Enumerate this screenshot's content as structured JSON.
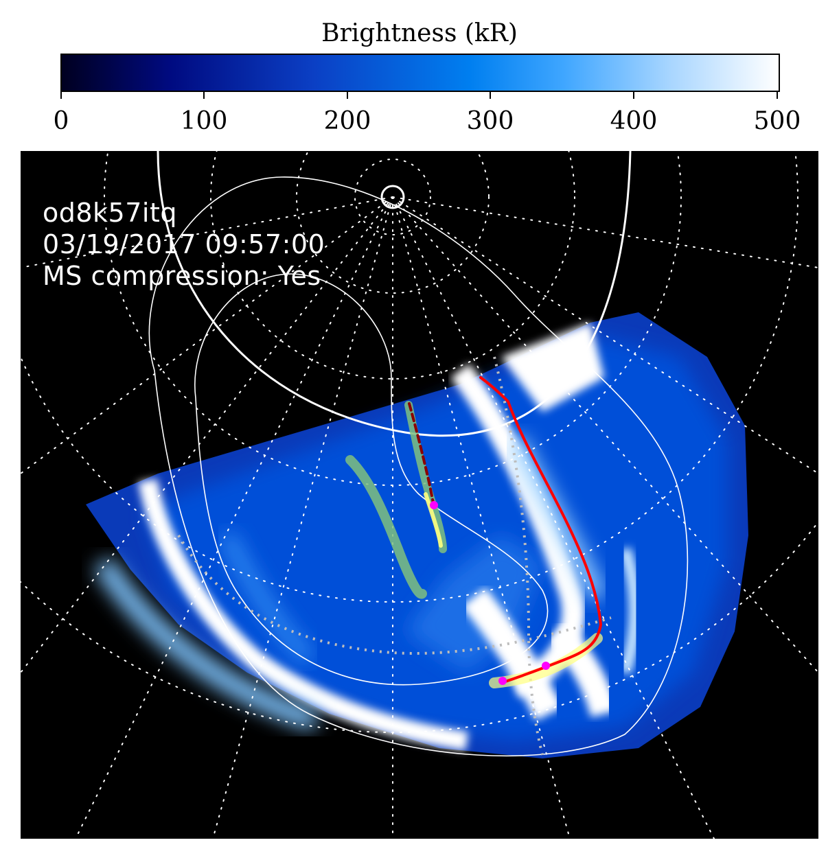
{
  "colorbar": {
    "title": "Brightness (kR)",
    "ticks": [
      "0",
      "100",
      "200",
      "300",
      "400",
      "500"
    ],
    "range": [
      0,
      500
    ],
    "colors": [
      "#000020",
      "#000a80",
      "#0b3fc4",
      "#007ff0",
      "#3fa6ff",
      "#a9d6ff",
      "#ffffff"
    ]
  },
  "annotation": {
    "observation_id": "od8k57itq",
    "datetime": "03/19/2017 09:57:00",
    "compression": "MS compression: Yes"
  },
  "overlay_colors": {
    "grid": "#ffffff",
    "trace_red": "#ff0000",
    "trace_darkred": "#8b0000",
    "trace_green": "#7fbf7f",
    "trace_yellow": "#ffff80",
    "marker": "#ff00ff"
  }
}
